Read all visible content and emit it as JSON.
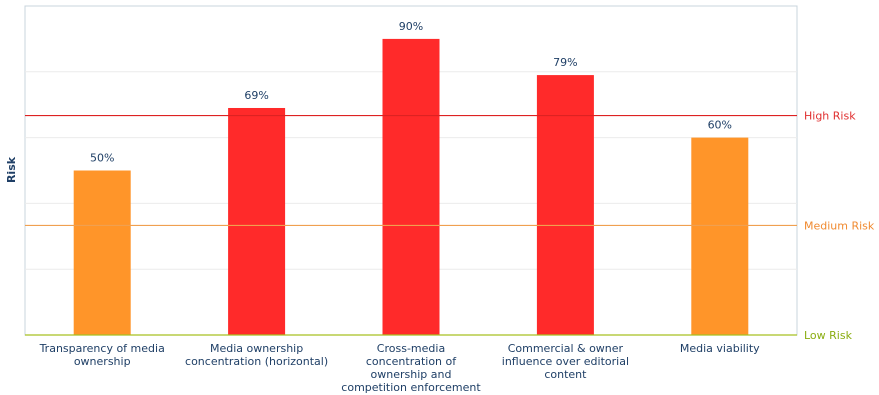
{
  "chart_data": {
    "type": "bar",
    "ylabel": "Risk",
    "ylim": [
      0,
      100
    ],
    "grid": true,
    "categories": [
      [
        "Transparency of media",
        "ownership"
      ],
      [
        "Media ownership",
        "concentration (horizontal)"
      ],
      [
        "Cross-media",
        "concentration of",
        "ownership and",
        "competition enforcement"
      ],
      [
        "Commercial & owner",
        "influence over editorial",
        "content"
      ],
      [
        "Media viability"
      ]
    ],
    "values": [
      50,
      69,
      90,
      79,
      60
    ],
    "value_labels": [
      "50%",
      "69%",
      "90%",
      "79%",
      "60%"
    ],
    "bar_colors": [
      "#ff9529",
      "#ff2a2a",
      "#ff2a2a",
      "#ff2a2a",
      "#ff9529"
    ],
    "reference_lines": [
      {
        "label": "High Risk",
        "value": 66.7,
        "color": "#dd2222",
        "text_color": "#e03030"
      },
      {
        "label": "Medium Risk",
        "value": 33.3,
        "color": "#f0a050",
        "text_color": "#f08a30"
      },
      {
        "label": "Low Risk",
        "value": 0,
        "color": "#a8c020",
        "text_color": "#8aad10"
      }
    ]
  }
}
